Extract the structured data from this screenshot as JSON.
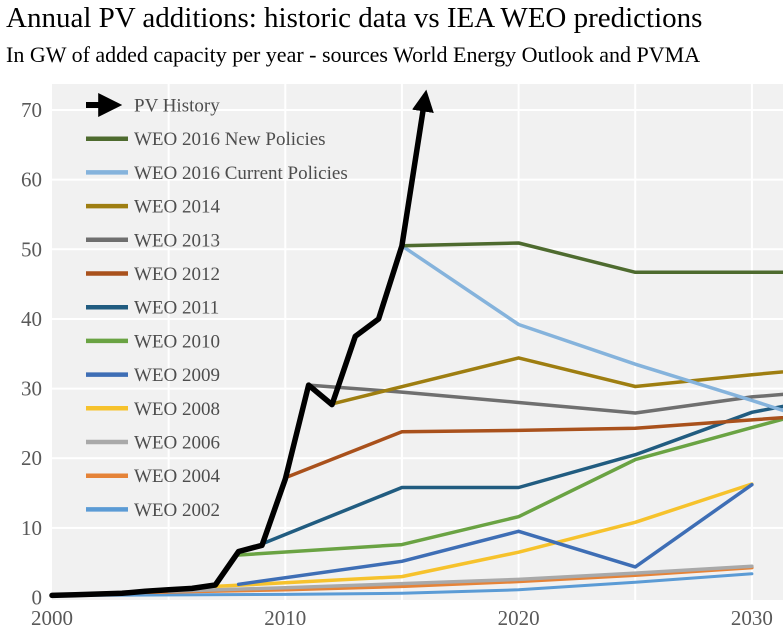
{
  "header": {
    "title": "Annual PV additions: historic data vs IEA WEO predictions",
    "subtitle": "In GW of added capacity per year - sources World Energy Outlook and PVMA"
  },
  "chart_data": {
    "type": "line",
    "title": "Annual PV additions: historic data vs IEA WEO predictions",
    "subtitle": "In GW of added capacity per year - sources World Energy Outlook and PVMA",
    "xlabel": "",
    "ylabel": "",
    "unit": "GW of added capacity per year",
    "x_range": [
      2000,
      2031.3
    ],
    "y_range": [
      0,
      73.5
    ],
    "x_ticks": [
      "2000",
      "2010",
      "2020",
      "2030"
    ],
    "x_tick_years": [
      2000,
      2010,
      2020,
      2030
    ],
    "y_ticks": [
      "0",
      "10",
      "20",
      "30",
      "40",
      "50",
      "60",
      "70"
    ],
    "y_tick_values": [
      0,
      10,
      20,
      30,
      40,
      50,
      60,
      70
    ],
    "grid": {
      "on": true,
      "x_years": [
        2005,
        2010,
        2015,
        2020,
        2025,
        2030
      ],
      "y_values": [
        10,
        20,
        30,
        40,
        50,
        60,
        70
      ]
    },
    "legend_position": "inside-top-left",
    "colors": {
      "plot_bg": "#f1f1f1",
      "grid": "#ffffff",
      "tick_text": "#595959",
      "legend_text": "#4d4d4d",
      "title_text": "#000000"
    },
    "series": [
      {
        "name": "PV History",
        "color": "#000000",
        "width": 5.5,
        "arrow_end": true,
        "points": [
          [
            2000,
            0.3
          ],
          [
            2001,
            0.4
          ],
          [
            2002,
            0.5
          ],
          [
            2003,
            0.6
          ],
          [
            2004,
            0.9
          ],
          [
            2005,
            1.1
          ],
          [
            2006,
            1.3
          ],
          [
            2007,
            1.8
          ],
          [
            2008,
            6.6
          ],
          [
            2009,
            7.5
          ],
          [
            2010,
            17.0
          ],
          [
            2011,
            30.5
          ],
          [
            2012,
            27.7
          ],
          [
            2013,
            37.5
          ],
          [
            2014,
            40.0
          ],
          [
            2015,
            50.5
          ],
          [
            2016,
            72.0
          ]
        ]
      },
      {
        "name": "WEO 2016 New Policies",
        "color": "#4e6b2f",
        "width": 3.5,
        "arrow_end": false,
        "points": [
          [
            2015,
            50.5
          ],
          [
            2020,
            50.9
          ],
          [
            2025,
            46.7
          ],
          [
            2040,
            46.7
          ]
        ]
      },
      {
        "name": "WEO 2016 Current Policies",
        "color": "#85b3dc",
        "width": 3.5,
        "arrow_end": false,
        "points": [
          [
            2015,
            50.5
          ],
          [
            2020,
            39.2
          ],
          [
            2025,
            33.5
          ],
          [
            2030,
            28.3
          ],
          [
            2040,
            17.5
          ]
        ]
      },
      {
        "name": "WEO 2014",
        "color": "#9e7e11",
        "width": 3.5,
        "arrow_end": false,
        "points": [
          [
            2012,
            27.8
          ],
          [
            2020,
            34.4
          ],
          [
            2025,
            30.3
          ],
          [
            2030,
            32.0
          ],
          [
            2040,
            35.0
          ]
        ]
      },
      {
        "name": "WEO 2013",
        "color": "#6f6f6f",
        "width": 3.5,
        "arrow_end": false,
        "points": [
          [
            2011,
            30.5
          ],
          [
            2015,
            29.5
          ],
          [
            2020,
            28.0
          ],
          [
            2025,
            26.5
          ],
          [
            2030,
            28.8
          ],
          [
            2040,
            31.5
          ]
        ]
      },
      {
        "name": "WEO 2012",
        "color": "#a9511c",
        "width": 3.5,
        "arrow_end": false,
        "points": [
          [
            2010,
            17.2
          ],
          [
            2015,
            23.8
          ],
          [
            2020,
            24.0
          ],
          [
            2025,
            24.3
          ],
          [
            2030,
            25.5
          ],
          [
            2040,
            28.0
          ]
        ]
      },
      {
        "name": "WEO 2011",
        "color": "#215c80",
        "width": 3.5,
        "arrow_end": false,
        "points": [
          [
            2009,
            7.7
          ],
          [
            2015,
            15.8
          ],
          [
            2020,
            15.8
          ],
          [
            2025,
            20.5
          ],
          [
            2030,
            26.6
          ],
          [
            2040,
            33.0
          ]
        ]
      },
      {
        "name": "WEO 2010",
        "color": "#6aa343",
        "width": 3.5,
        "arrow_end": false,
        "points": [
          [
            2008,
            6.1
          ],
          [
            2015,
            7.6
          ],
          [
            2020,
            11.6
          ],
          [
            2025,
            19.8
          ],
          [
            2030,
            24.4
          ],
          [
            2040,
            33.5
          ]
        ]
      },
      {
        "name": "WEO 2009",
        "color": "#3e6eb5",
        "width": 3.5,
        "arrow_end": false,
        "points": [
          [
            2008,
            1.9
          ],
          [
            2015,
            5.2
          ],
          [
            2020,
            9.5
          ],
          [
            2025,
            4.4
          ],
          [
            2030,
            16.2
          ]
        ]
      },
      {
        "name": "WEO 2008",
        "color": "#f6c22c",
        "width": 3.5,
        "arrow_end": false,
        "points": [
          [
            2007,
            1.6
          ],
          [
            2015,
            3.0
          ],
          [
            2020,
            6.5
          ],
          [
            2025,
            10.8
          ],
          [
            2030,
            16.3
          ]
        ]
      },
      {
        "name": "WEO 2006",
        "color": "#a9a9a9",
        "width": 3.5,
        "arrow_end": false,
        "points": [
          [
            2005,
            0.9
          ],
          [
            2010,
            1.4
          ],
          [
            2015,
            2.0
          ],
          [
            2020,
            2.6
          ],
          [
            2025,
            3.5
          ],
          [
            2030,
            4.5
          ]
        ]
      },
      {
        "name": "WEO 2004",
        "color": "#e58338",
        "width": 3.5,
        "arrow_end": false,
        "points": [
          [
            2002,
            0.6
          ],
          [
            2010,
            1.1
          ],
          [
            2015,
            1.6
          ],
          [
            2020,
            2.3
          ],
          [
            2025,
            3.2
          ],
          [
            2030,
            4.3
          ]
        ]
      },
      {
        "name": "WEO 2002",
        "color": "#5b9bd5",
        "width": 3.0,
        "arrow_end": false,
        "points": [
          [
            2000,
            0.3
          ],
          [
            2010,
            0.45
          ],
          [
            2015,
            0.6
          ],
          [
            2020,
            1.1
          ],
          [
            2025,
            2.2
          ],
          [
            2030,
            3.4
          ]
        ]
      }
    ]
  }
}
